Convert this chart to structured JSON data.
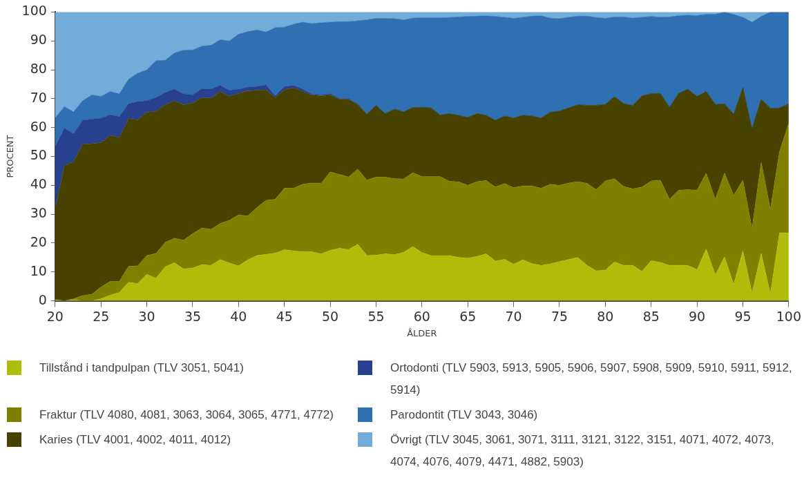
{
  "chart_data": {
    "type": "area",
    "xlabel": "ÅLDER",
    "ylabel": "PROCENT",
    "stacked": true,
    "grid": false,
    "legend": "bottom",
    "marker": "none",
    "x": [
      20,
      21,
      22,
      23,
      24,
      25,
      26,
      27,
      28,
      29,
      30,
      31,
      32,
      33,
      34,
      35,
      36,
      37,
      38,
      39,
      40,
      41,
      42,
      43,
      44,
      45,
      46,
      47,
      48,
      49,
      50,
      51,
      52,
      53,
      54,
      55,
      56,
      57,
      58,
      59,
      60,
      61,
      62,
      63,
      64,
      65,
      66,
      67,
      68,
      69,
      70,
      71,
      72,
      73,
      74,
      75,
      76,
      77,
      78,
      79,
      80,
      81,
      82,
      83,
      84,
      85,
      86,
      87,
      88,
      89,
      90,
      91,
      92,
      93,
      94,
      95,
      96,
      97,
      98,
      99,
      100
    ],
    "xlim": [
      20,
      100
    ],
    "xticks": [
      20,
      25,
      30,
      35,
      40,
      45,
      50,
      55,
      60,
      65,
      70,
      75,
      80,
      85,
      90,
      95,
      100
    ],
    "ylim": [
      0,
      100
    ],
    "yticks": [
      0,
      10,
      20,
      30,
      40,
      50,
      60,
      70,
      80,
      90,
      100
    ],
    "series": [
      {
        "name": "Tillstånd i tandpulpan (TLV 3051, 5041)",
        "color": "#afbd0a",
        "values": [
          0.4,
          0,
          0.4,
          0,
          0,
          0.7,
          2,
          2.9,
          6.4,
          6,
          9.2,
          7.8,
          11.8,
          13.2,
          11,
          11.4,
          12.5,
          12.3,
          14.3,
          13.1,
          12.1,
          14.2,
          15.7,
          16.1,
          16.5,
          17.7,
          17.3,
          17,
          17,
          16.3,
          17.5,
          18.2,
          17.8,
          19.6,
          15.7,
          15.8,
          16.3,
          16,
          16.8,
          18.8,
          16.7,
          15.7,
          15.7,
          15.7,
          15,
          14.8,
          15.4,
          16.3,
          13.8,
          14.4,
          12.7,
          14.2,
          12.9,
          12.3,
          12.8,
          13.6,
          14.3,
          15,
          12.3,
          10.4,
          10.6,
          13.5,
          12.3,
          12.3,
          10.2,
          13.9,
          13.3,
          12.3,
          12.3,
          12.3,
          10.8,
          17.9,
          9,
          15.2,
          5.7,
          17.3,
          2.7,
          16.4,
          2.5,
          23.5,
          23.5
        ]
      },
      {
        "name": "Fraktur (TLV 4080, 4081, 3063, 3064, 3065, 4771, 4772)",
        "color": "#7f7f00",
        "values": [
          0,
          0,
          0.3,
          1.8,
          2.3,
          4.1,
          4.7,
          3.8,
          5.5,
          6.1,
          6.5,
          8.6,
          8.4,
          8.5,
          10,
          11.9,
          12.7,
          12.5,
          12.5,
          14.8,
          17.7,
          15.2,
          16.6,
          18.7,
          18.7,
          21.3,
          21.7,
          23.4,
          23.8,
          24.4,
          27.1,
          25.6,
          25.1,
          26,
          26.1,
          27.1,
          26.5,
          26.3,
          25.4,
          25.6,
          26.3,
          27.3,
          27.3,
          25.7,
          26.2,
          25.2,
          25.9,
          25.4,
          25.6,
          26.2,
          26.5,
          25.6,
          26.9,
          26.7,
          27.6,
          26.4,
          26.5,
          26.3,
          28.4,
          28.1,
          30.9,
          28.8,
          27.3,
          26.5,
          29.2,
          27.6,
          28.5,
          22.9,
          26,
          26.2,
          27.5,
          26.3,
          26.2,
          29,
          30.8,
          24.5,
          22.3,
          31.6,
          29.2,
          28.2,
          38
        ]
      },
      {
        "name": "Karies (TLV 4001, 4002, 4011, 4012)",
        "color": "#474200",
        "values": [
          31.3,
          46.8,
          47.5,
          52.4,
          52.1,
          50,
          50.6,
          49.8,
          51.2,
          50.6,
          49.6,
          49.2,
          47.7,
          47.6,
          46.9,
          45.2,
          45.2,
          45.4,
          45.7,
          42.9,
          42,
          43.3,
          40.6,
          38.3,
          35.2,
          34.1,
          34.8,
          32.1,
          30.5,
          30.3,
          26.7,
          26,
          26.9,
          22.4,
          22.8,
          24.8,
          22,
          24.1,
          23.2,
          22.5,
          24,
          23.8,
          21.3,
          23.4,
          23,
          23.5,
          23.5,
          22.5,
          23.1,
          23.4,
          24.1,
          24.4,
          24.2,
          24.3,
          24.9,
          25.7,
          26,
          26.6,
          27,
          29.2,
          26.5,
          28.4,
          28.7,
          28.9,
          31.6,
          30.2,
          30,
          31.8,
          33.5,
          34.8,
          32.5,
          28.3,
          32.8,
          24,
          28.1,
          32,
          34.6,
          21.8,
          35,
          15.1,
          6.7
        ]
      },
      {
        "name": "Ortodonti (TLV 5903, 5913, 5905, 5906, 5907, 5908, 5909, 5910, 5911, 5912, 5914)",
        "color": "#27418f",
        "values": [
          21.6,
          13,
          9.7,
          8.3,
          8.5,
          8.5,
          7.1,
          7.3,
          5.2,
          6.3,
          4,
          4.8,
          4.2,
          4,
          3.8,
          2.8,
          3.1,
          3.1,
          2.1,
          2.1,
          1.5,
          1.3,
          1.3,
          1.7,
          0.6,
          1.1,
          0.8,
          0.8,
          0.3,
          0.3,
          0.4,
          0.3,
          0.3,
          0.2,
          0,
          0,
          0,
          0,
          0,
          0,
          0,
          0,
          0,
          0,
          0,
          0,
          0,
          0,
          0,
          0,
          0,
          0,
          0,
          0,
          0,
          0,
          0,
          0,
          0,
          0,
          0,
          0,
          0,
          0,
          0,
          0,
          0,
          0,
          0,
          0,
          0,
          0,
          0,
          0,
          0,
          0,
          0,
          0,
          0,
          0,
          0
        ]
      },
      {
        "name": "Parodontit (TLV 3043, 3046)",
        "color": "#2e70b2",
        "values": [
          10,
          7.5,
          7.5,
          6.8,
          8.4,
          7.5,
          8.1,
          7.9,
          8.4,
          9.8,
          10.7,
          12.8,
          11.2,
          12.5,
          15.1,
          15.6,
          14.7,
          15.2,
          15.8,
          17.1,
          19,
          19.2,
          19.6,
          18.3,
          23.6,
          20.6,
          21.2,
          23.2,
          24.4,
          25,
          24.8,
          26.6,
          26.6,
          28.8,
          32.7,
          30.1,
          33,
          31.3,
          31.9,
          31,
          31,
          31.2,
          33.7,
          33.3,
          34.1,
          35,
          33.8,
          34.5,
          36,
          34.2,
          34.5,
          34,
          34.6,
          35.4,
          32.6,
          32,
          31.4,
          30.7,
          30.9,
          30.4,
          29.8,
          27.6,
          30,
          30.2,
          27.2,
          26.8,
          26.4,
          31.3,
          27,
          25.6,
          28,
          26.7,
          31.2,
          31.8,
          34.6,
          24.4,
          36.9,
          28.7,
          33.3,
          33.2,
          31.8
        ]
      },
      {
        "name": "Övrigt (TLV 3045, 3061, 3071, 3111, 3121, 3122, 3151, 4071, 4072, 4073, 4074, 4076, 4079, 4471, 4882, 5903)",
        "color": "#74acd9",
        "values": [
          36.7,
          32.7,
          34.6,
          30.7,
          28.7,
          29.2,
          27.5,
          28.3,
          23.3,
          21.2,
          20,
          16.8,
          16.7,
          14.2,
          13.2,
          13.1,
          11.8,
          11.5,
          9.6,
          10,
          7.7,
          6.8,
          6.2,
          6.9,
          5.4,
          5.2,
          4.2,
          3.5,
          4,
          3.7,
          3.5,
          3.3,
          3.3,
          3,
          2.7,
          2.2,
          2.2,
          2.3,
          2.7,
          2.1,
          2,
          2,
          2,
          1.9,
          1.7,
          1.5,
          1.4,
          1.3,
          1.5,
          1.8,
          2.2,
          1.8,
          1.4,
          1.3,
          2.1,
          2.3,
          1.8,
          1.4,
          1.4,
          1.9,
          2.2,
          1.7,
          1.7,
          2.1,
          1.8,
          1.5,
          1.8,
          1.7,
          1.2,
          1.1,
          1.2,
          0.8,
          0.8,
          0,
          0.8,
          1.8,
          3.5,
          1.5,
          0,
          0,
          0
        ]
      }
    ]
  }
}
